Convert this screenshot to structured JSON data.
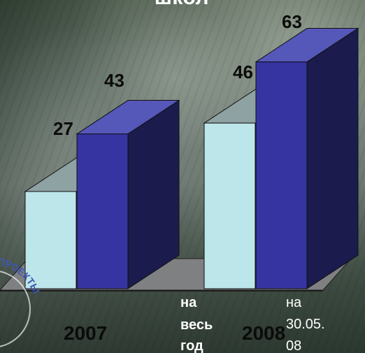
{
  "chart_data": {
    "type": "bar",
    "title": "школ",
    "categories": [
      "2007",
      "2008"
    ],
    "series": [
      {
        "name": "на весь год",
        "values": [
          27,
          46
        ],
        "color": "#bde6ea"
      },
      {
        "name": "на 30.05.08",
        "values": [
          43,
          63
        ],
        "color": "#3534a1"
      }
    ],
    "xlabel": "",
    "ylabel": "",
    "ylim": [
      0,
      70
    ],
    "grid": false,
    "legend_placement": "bottom",
    "legend_lines": [
      [
        "на",
        "весь",
        "год"
      ],
      [
        "на",
        "30.05.",
        "08"
      ]
    ]
  },
  "stamp_text": "ПРОЕКТЫ",
  "style": {
    "floor_color": "#7f8081",
    "floor_edge_color": "#1d1d1d",
    "bar_side_color": "#1b1b4e",
    "bar_top_dark_color": "#5557b9",
    "bar_top_light_color": "#8ea1a3"
  }
}
